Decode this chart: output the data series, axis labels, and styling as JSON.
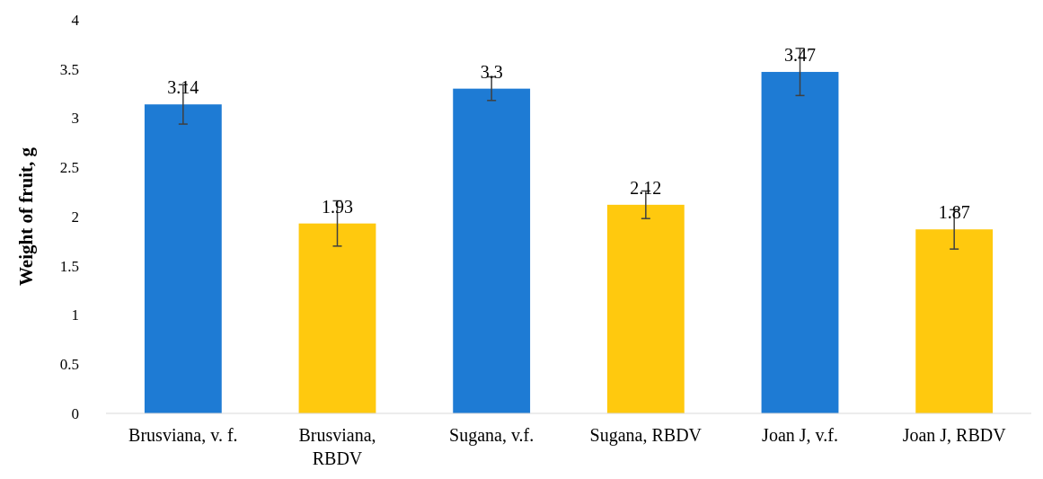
{
  "chart_data": {
    "type": "bar",
    "ylabel": "Weight of fruit, g",
    "categories": [
      "Brusviana, v. f.",
      "Brusviana, RBDV",
      "Sugana, v.f.",
      "Sugana, RBDV",
      "Joan J, v.f.",
      "Joan J, RBDV"
    ],
    "values": [
      3.14,
      1.93,
      3.3,
      2.12,
      3.47,
      1.87
    ],
    "colors": [
      "#1e7bd4",
      "#ffc90e",
      "#1e7bd4",
      "#ffc90e",
      "#1e7bd4",
      "#ffc90e"
    ],
    "errors": [
      0.2,
      0.23,
      0.12,
      0.14,
      0.24,
      0.2
    ],
    "ylim": [
      0,
      4
    ],
    "yticks": [
      0,
      0.5,
      1,
      1.5,
      2,
      2.5,
      3,
      3.5,
      4
    ],
    "data_labels": true,
    "grid": false
  }
}
